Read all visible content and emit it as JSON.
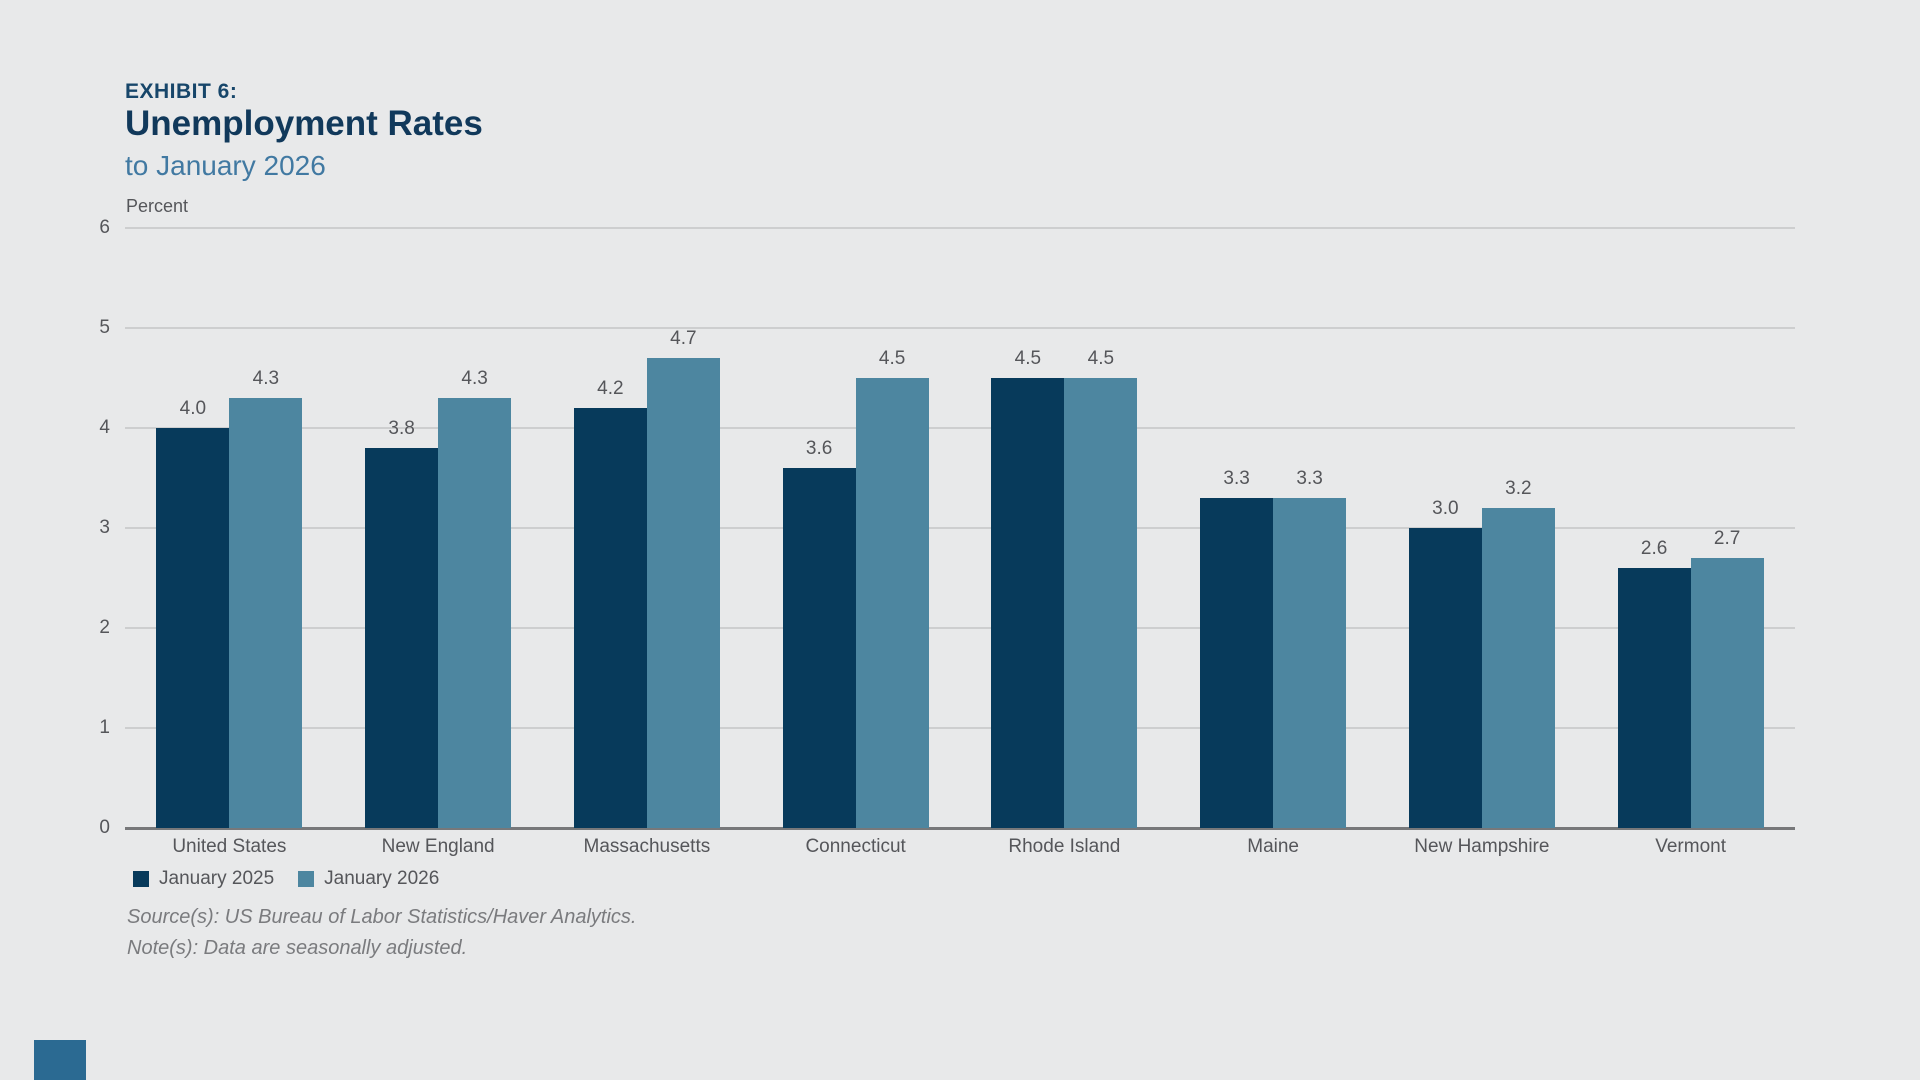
{
  "header": {
    "exhibit": "EXHIBIT 6:",
    "title": "Unemployment Rates",
    "subtitle": "to January 2026",
    "axis_unit": "Percent"
  },
  "legend": [
    {
      "label": "January 2025",
      "color": "#073A5B"
    },
    {
      "label": "January 2026",
      "color": "#4D86A0"
    }
  ],
  "footer": {
    "source": "Source(s): US Bureau of Labor Statistics/Haver Analytics.",
    "note": "Note(s): Data are seasonally adjusted."
  },
  "colors": {
    "background": "#E8E9EA",
    "bar_dark": "#073A5B",
    "bar_light": "#4D86A0",
    "gridline": "#CDCECF",
    "axis_line": "#77787A",
    "text_gray": "#55565A",
    "title_navy": "#11395B",
    "subtitle_blue": "#4179A2",
    "source_gray": "#7A7B7E",
    "corner_square": "#2B6A92"
  },
  "chart_data": {
    "type": "bar",
    "title": "Unemployment Rates to January 2026",
    "categories": [
      "United States",
      "New England",
      "Massachusetts",
      "Connecticut",
      "Rhode Island",
      "Maine",
      "New Hampshire",
      "Vermont"
    ],
    "series": [
      {
        "name": "January 2025",
        "color": "#073A5B",
        "values": [
          4.0,
          3.8,
          4.2,
          3.6,
          4.5,
          3.3,
          3.0,
          2.6
        ]
      },
      {
        "name": "January 2026",
        "color": "#4D86A0",
        "values": [
          4.3,
          4.3,
          4.7,
          4.5,
          4.5,
          3.3,
          3.2,
          2.7
        ]
      }
    ],
    "xlabel": "",
    "ylabel": "Percent",
    "ylim": [
      0,
      6
    ],
    "yticks": [
      0,
      1,
      2,
      3,
      4,
      5,
      6
    ],
    "grid": true,
    "value_labels": true,
    "value_label_format": "one_decimal",
    "legend_position": "bottom-left"
  }
}
